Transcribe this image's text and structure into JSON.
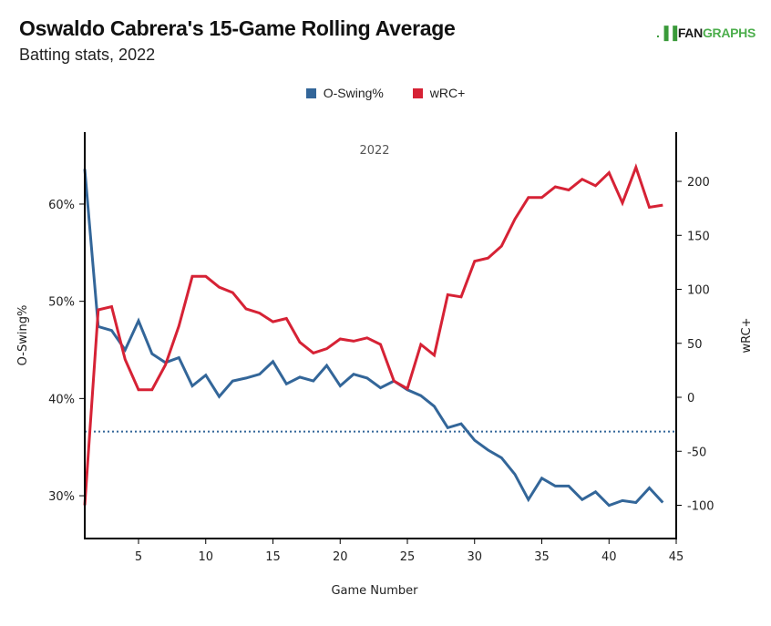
{
  "header": {
    "title": "Oswaldo Cabrera's 15-Game Rolling Average",
    "subtitle": "Batting stats, 2022",
    "logo_fan": "FAN",
    "logo_graphs": "GRAPHS",
    "logo_mark": ".▐▐"
  },
  "legend": [
    {
      "label": "O-Swing%",
      "color": "#336699"
    },
    {
      "label": "wRC+",
      "color": "#d62235"
    }
  ],
  "chart_data": {
    "type": "line",
    "title": "Oswaldo Cabrera's 15-Game Rolling Average",
    "subtitle": "Batting stats, 2022",
    "facet_label": "2022",
    "xlabel": "Game Number",
    "ylabel_left": "O-Swing%",
    "ylabel_right": "wRC+",
    "x": [
      1,
      2,
      3,
      4,
      5,
      6,
      7,
      8,
      9,
      10,
      11,
      12,
      13,
      14,
      15,
      16,
      17,
      18,
      19,
      20,
      21,
      22,
      23,
      24,
      25,
      26,
      27,
      28,
      29,
      30,
      31,
      32,
      33,
      34,
      35,
      36,
      37,
      38,
      39,
      40,
      41,
      42,
      43,
      44
    ],
    "xlim": [
      1,
      45
    ],
    "xticks": [
      5,
      10,
      15,
      20,
      25,
      30,
      35,
      40,
      45
    ],
    "ylim_left": [
      25.6,
      67.4
    ],
    "yticks_left": [
      30,
      40,
      50,
      60
    ],
    "ytick_labels_left": [
      "30%",
      "40%",
      "50%",
      "60%"
    ],
    "ylim_right": [
      -130.8,
      245.6
    ],
    "yticks_right": [
      -100,
      -50,
      0,
      50,
      100,
      150,
      200
    ],
    "ytick_labels_right": [
      "-100",
      "-50",
      "0",
      "50",
      "100",
      "150",
      "200"
    ],
    "grid": false,
    "legend_position": "top-center",
    "series": [
      {
        "name": "O-Swing%",
        "axis": "left",
        "color": "#336699",
        "values": [
          63.6,
          47.4,
          47.0,
          45.0,
          48.0,
          44.6,
          43.7,
          44.2,
          41.3,
          42.4,
          40.2,
          41.8,
          42.1,
          42.5,
          43.8,
          41.5,
          42.2,
          41.8,
          43.4,
          41.3,
          42.5,
          42.1,
          41.1,
          41.8,
          40.9,
          40.3,
          39.2,
          37.0,
          37.4,
          35.7,
          34.7,
          33.9,
          32.2,
          29.6,
          31.8,
          31.0,
          31.0,
          29.6,
          30.4,
          29.0,
          29.5,
          29.3,
          30.8,
          29.3
        ]
      },
      {
        "name": "wRC+",
        "axis": "right",
        "color": "#d62235",
        "values": [
          -100,
          81,
          84,
          35,
          7,
          7,
          30,
          66,
          112,
          112,
          102,
          97,
          82,
          78,
          70,
          73,
          51,
          41,
          45,
          54,
          52,
          55,
          49,
          15,
          8,
          49,
          39,
          95,
          93,
          126,
          129,
          140,
          165,
          185,
          185,
          195,
          192,
          202,
          196,
          208,
          180,
          213,
          176,
          178
        ]
      }
    ],
    "reference_lines": [
      {
        "name": "league-average-o-swing",
        "axis": "left",
        "value": 36.6,
        "color": "#336699",
        "style": "dotted"
      }
    ]
  }
}
